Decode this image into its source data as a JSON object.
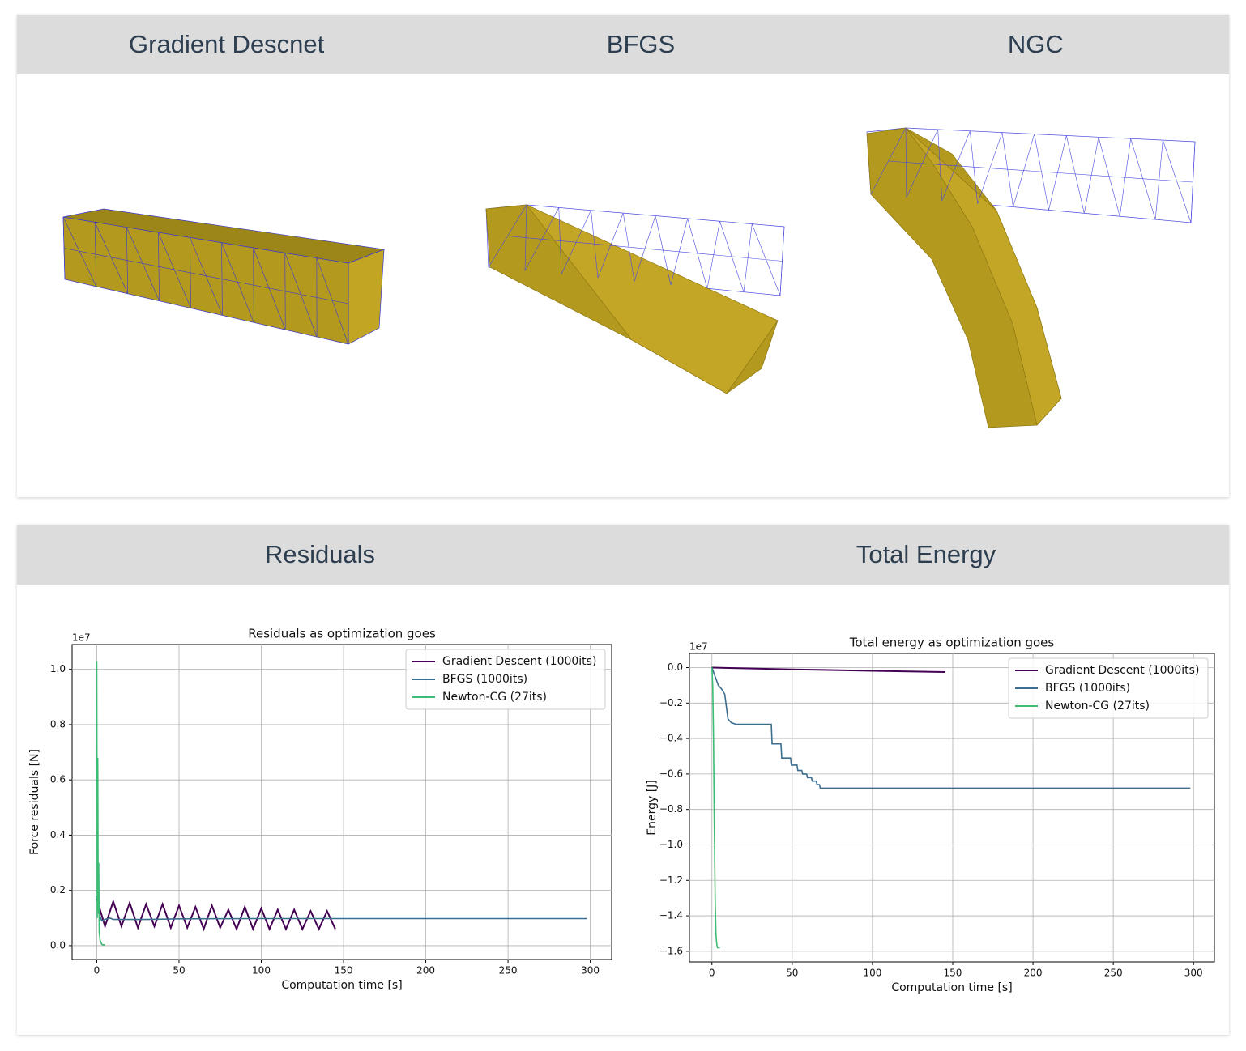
{
  "top_panel": {
    "headers": [
      "Gradient Descnet",
      "BFGS",
      "NGC"
    ]
  },
  "bottom_panel": {
    "headers": [
      "Residuals",
      "Total Energy"
    ]
  },
  "chart_data": [
    {
      "type": "line",
      "title": "Residuals as optimization goes",
      "x_label": "Computation time [s]",
      "y_label": "Force residuals [N]",
      "y_offset_label": "1e7",
      "xlim": [
        -15,
        313
      ],
      "ylim": [
        -0.05,
        1.09
      ],
      "xticks": [
        0,
        50,
        100,
        150,
        200,
        250,
        300
      ],
      "yticks": [
        {
          "value": 0,
          "label": "0.0"
        },
        0.2,
        0.4,
        0.6,
        0.8,
        {
          "value": 1,
          "label": "1.0"
        }
      ],
      "grid": true,
      "legend": "upper right",
      "series": [
        {
          "name": "Gradient Descent (1000its)",
          "color": "#440154",
          "x": [
            0,
            5,
            10,
            15,
            20,
            25,
            30,
            35,
            40,
            45,
            50,
            55,
            60,
            65,
            70,
            75,
            80,
            85,
            90,
            95,
            100,
            105,
            110,
            115,
            120,
            125,
            130,
            135,
            140,
            145
          ],
          "values": [
            0.17,
            0.07,
            0.16,
            0.07,
            0.155,
            0.065,
            0.15,
            0.07,
            0.15,
            0.065,
            0.145,
            0.065,
            0.14,
            0.06,
            0.145,
            0.065,
            0.13,
            0.06,
            0.14,
            0.06,
            0.135,
            0.06,
            0.13,
            0.06,
            0.13,
            0.06,
            0.125,
            0.06,
            0.125,
            0.06
          ]
        },
        {
          "name": "BFGS (1000its)",
          "color": "#3b6e8f",
          "x": [
            0,
            1,
            3,
            5,
            8,
            10,
            15,
            30,
            50,
            100,
            150,
            200,
            250,
            298
          ],
          "values": [
            0.18,
            0.12,
            0.09,
            0.095,
            0.1,
            0.095,
            0.095,
            0.095,
            0.097,
            0.098,
            0.098,
            0.098,
            0.098,
            0.098
          ]
        },
        {
          "name": "Newton-CG (27its)",
          "color": "#3dbc74",
          "x": [
            0,
            0.3,
            0.6,
            0.9,
            1.2,
            1.5,
            2,
            3,
            4,
            5
          ],
          "values": [
            1.03,
            0.1,
            0.68,
            0.12,
            0.3,
            0.05,
            0.02,
            0.005,
            0.003,
            0.003
          ]
        }
      ]
    },
    {
      "type": "line",
      "title": "Total energy as optimization goes",
      "x_label": "Computation time [s]",
      "y_label": "Energy [J]",
      "y_offset_label": "1e7",
      "xlim": [
        -14,
        313
      ],
      "ylim": [
        -1.66,
        0.08
      ],
      "xticks": [
        0,
        50,
        100,
        150,
        200,
        250,
        300
      ],
      "yticks": [
        {
          "value": 0,
          "label": "0.0"
        },
        {
          "value": -0.2,
          "label": "−0.2"
        },
        {
          "value": -0.4,
          "label": "−0.4"
        },
        {
          "value": -0.6,
          "label": "−0.6"
        },
        {
          "value": -0.8,
          "label": "−0.8"
        },
        {
          "value": -1,
          "label": "−1.0"
        },
        {
          "value": -1.2,
          "label": "−1.2"
        },
        {
          "value": -1.4,
          "label": "−1.4"
        },
        {
          "value": -1.6,
          "label": "−1.6"
        }
      ],
      "grid": true,
      "legend": "upper right",
      "series": [
        {
          "name": "Gradient Descent (1000its)",
          "color": "#440154",
          "x": [
            0,
            50,
            100,
            145
          ],
          "values": [
            0,
            -0.01,
            -0.018,
            -0.025
          ]
        },
        {
          "name": "BFGS (1000its)",
          "color": "#3b6e8f",
          "x": [
            0,
            2,
            4,
            6,
            8,
            10,
            12,
            15,
            20,
            30,
            37,
            37.5,
            43,
            43.5,
            49,
            49.5,
            53,
            53.5,
            56,
            56.5,
            59,
            59.5,
            62,
            62.5,
            65,
            65.5,
            67,
            67.5,
            100,
            200,
            298
          ],
          "values": [
            0,
            -0.05,
            -0.1,
            -0.12,
            -0.15,
            -0.29,
            -0.31,
            -0.32,
            -0.32,
            -0.32,
            -0.32,
            -0.43,
            -0.43,
            -0.51,
            -0.51,
            -0.55,
            -0.55,
            -0.58,
            -0.58,
            -0.6,
            -0.6,
            -0.62,
            -0.62,
            -0.64,
            -0.64,
            -0.66,
            -0.66,
            -0.68,
            -0.68,
            -0.68,
            -0.68
          ]
        },
        {
          "name": "Newton-CG (27its)",
          "color": "#3dbc74",
          "x": [
            0,
            0.5,
            1,
            1.5,
            2,
            2.5,
            3,
            3.5,
            4,
            5
          ],
          "values": [
            0,
            -0.1,
            -0.4,
            -0.9,
            -1.3,
            -1.5,
            -1.56,
            -1.58,
            -1.58,
            -1.58
          ]
        }
      ]
    }
  ]
}
